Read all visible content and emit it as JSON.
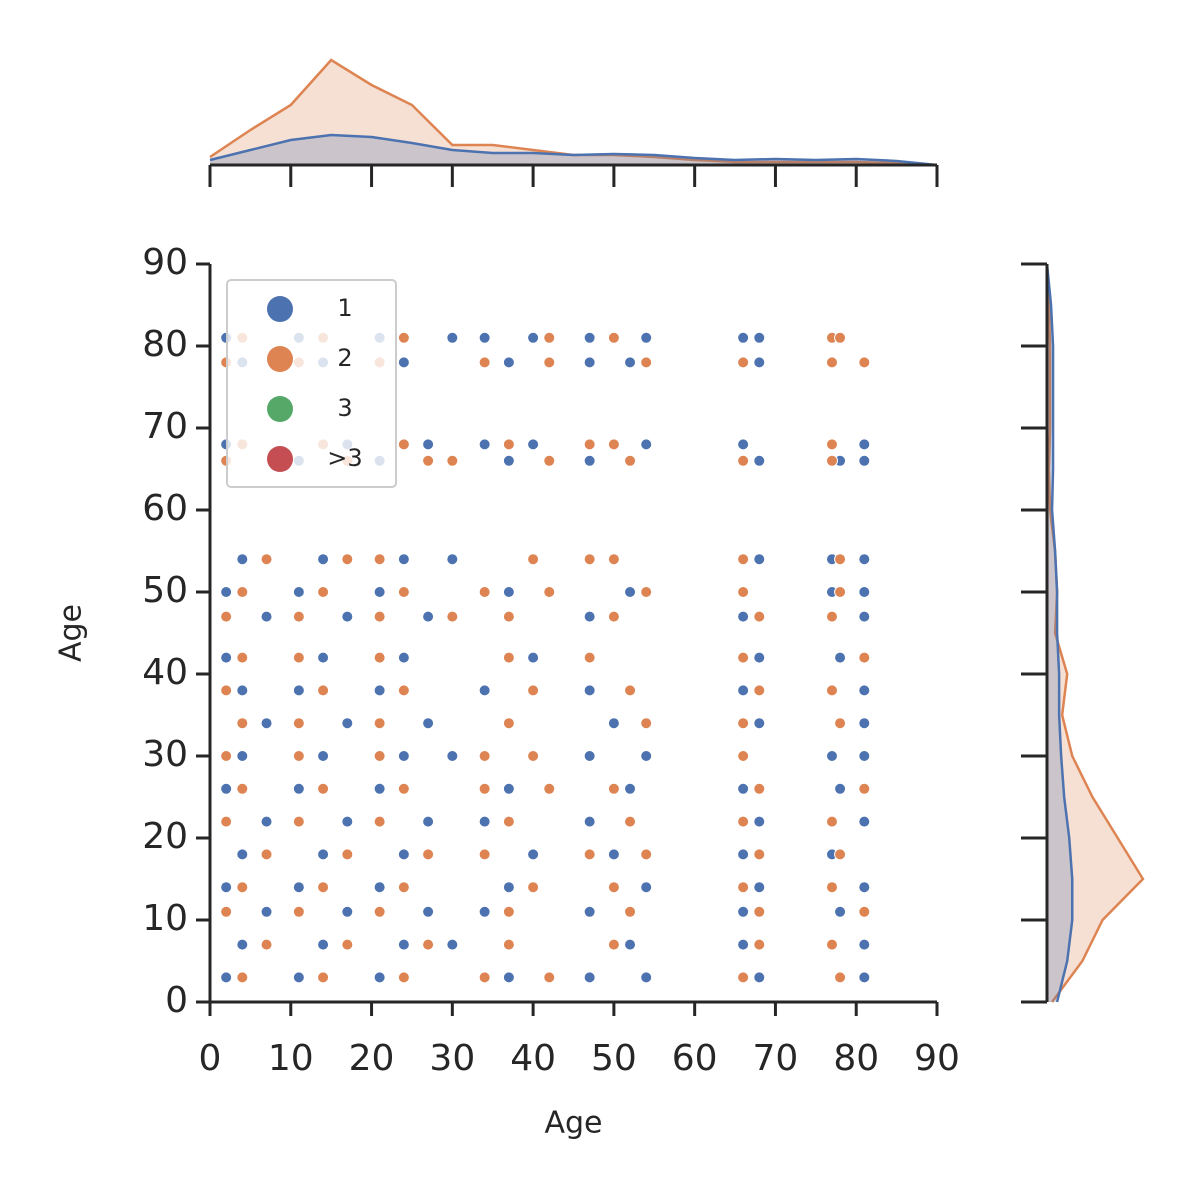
{
  "chart_data": [
    {
      "type": "scatter",
      "xlabel": "Age",
      "ylabel": "Age",
      "xlim": [
        0,
        90
      ],
      "ylim": [
        0,
        90
      ],
      "xticks": [
        0,
        10,
        20,
        30,
        40,
        50,
        60,
        70,
        80,
        90
      ],
      "yticks": [
        0,
        10,
        20,
        30,
        40,
        50,
        60,
        70,
        80,
        90
      ],
      "legend": "upper left",
      "series": [
        {
          "name": "1",
          "color": "#4c72b0",
          "x": [
            2,
            11,
            21,
            30,
            34,
            40,
            47,
            54,
            66,
            68,
            4,
            14,
            24,
            37,
            47,
            52,
            68,
            2,
            17,
            27,
            34,
            40,
            54,
            66,
            81,
            11,
            21,
            37,
            47,
            68,
            78,
            81,
            4,
            14,
            24,
            30,
            68,
            77,
            81,
            2,
            11,
            21,
            37,
            52,
            77,
            81,
            7,
            17,
            27,
            47,
            66,
            81,
            2,
            14,
            24,
            40,
            68,
            78,
            4,
            11,
            21,
            34,
            47,
            66,
            81,
            7,
            17,
            27,
            50,
            68,
            81,
            4,
            14,
            24,
            30,
            47,
            54,
            77,
            81,
            2,
            11,
            21,
            37,
            52,
            66,
            78,
            7,
            17,
            27,
            34,
            47,
            68,
            81,
            4,
            14,
            24,
            40,
            50,
            66,
            77,
            2,
            11,
            21,
            37,
            54,
            68,
            81,
            7,
            17,
            27,
            34,
            47,
            66,
            78,
            4,
            14,
            24,
            30,
            52,
            66,
            81,
            2,
            11,
            21,
            37,
            47,
            54,
            68,
            81
          ],
          "y": [
            81,
            81,
            81,
            81,
            81,
            81,
            81,
            81,
            81,
            81,
            78,
            78,
            78,
            78,
            78,
            78,
            78,
            68,
            68,
            68,
            68,
            68,
            68,
            68,
            68,
            66,
            66,
            66,
            66,
            66,
            66,
            66,
            54,
            54,
            54,
            54,
            54,
            54,
            54,
            50,
            50,
            50,
            50,
            50,
            50,
            50,
            47,
            47,
            47,
            47,
            47,
            47,
            42,
            42,
            42,
            42,
            42,
            42,
            38,
            38,
            38,
            38,
            38,
            38,
            38,
            34,
            34,
            34,
            34,
            34,
            34,
            30,
            30,
            30,
            30,
            30,
            30,
            30,
            30,
            26,
            26,
            26,
            26,
            26,
            26,
            26,
            22,
            22,
            22,
            22,
            22,
            22,
            22,
            18,
            18,
            18,
            18,
            18,
            18,
            18,
            14,
            14,
            14,
            14,
            14,
            14,
            14,
            11,
            11,
            11,
            11,
            11,
            11,
            11,
            7,
            7,
            7,
            7,
            7,
            7,
            7,
            3,
            3,
            3,
            3,
            3,
            3,
            3,
            3
          ]
        },
        {
          "name": "2",
          "color": "#dd8452",
          "x": [
            4,
            14,
            24,
            42,
            50,
            77,
            78,
            2,
            11,
            21,
            34,
            42,
            54,
            66,
            77,
            81,
            4,
            14,
            24,
            37,
            47,
            50,
            77,
            2,
            17,
            27,
            30,
            42,
            52,
            66,
            77,
            7,
            17,
            21,
            40,
            47,
            50,
            66,
            78,
            4,
            14,
            24,
            34,
            42,
            54,
            66,
            78,
            2,
            11,
            21,
            30,
            37,
            50,
            68,
            77,
            4,
            11,
            21,
            37,
            47,
            66,
            81,
            2,
            14,
            24,
            40,
            52,
            68,
            77,
            4,
            11,
            21,
            37,
            54,
            66,
            78,
            2,
            11,
            21,
            34,
            40,
            66,
            4,
            14,
            24,
            34,
            42,
            50,
            68,
            81,
            2,
            11,
            21,
            37,
            52,
            66,
            77,
            7,
            17,
            27,
            34,
            47,
            54,
            68,
            78,
            4,
            14,
            24,
            40,
            50,
            66,
            77,
            2,
            11,
            21,
            37,
            52,
            68,
            81,
            7,
            17,
            27,
            37,
            50,
            68,
            77,
            4,
            14,
            24,
            34,
            42,
            66,
            78
          ],
          "y": [
            81,
            81,
            81,
            81,
            81,
            81,
            81,
            78,
            78,
            78,
            78,
            78,
            78,
            78,
            78,
            78,
            68,
            68,
            68,
            68,
            68,
            68,
            68,
            66,
            66,
            66,
            66,
            66,
            66,
            66,
            66,
            54,
            54,
            54,
            54,
            54,
            54,
            54,
            54,
            50,
            50,
            50,
            50,
            50,
            50,
            50,
            50,
            47,
            47,
            47,
            47,
            47,
            47,
            47,
            47,
            42,
            42,
            42,
            42,
            42,
            42,
            42,
            38,
            38,
            38,
            38,
            38,
            38,
            38,
            34,
            34,
            34,
            34,
            34,
            34,
            34,
            30,
            30,
            30,
            30,
            30,
            30,
            26,
            26,
            26,
            26,
            26,
            26,
            26,
            26,
            22,
            22,
            22,
            22,
            22,
            22,
            22,
            18,
            18,
            18,
            18,
            18,
            18,
            18,
            18,
            14,
            14,
            14,
            14,
            14,
            14,
            14,
            11,
            11,
            11,
            11,
            11,
            11,
            11,
            7,
            7,
            7,
            7,
            7,
            7,
            7,
            3,
            3,
            3,
            3,
            3,
            3,
            3
          ]
        },
        {
          "name": "3",
          "color": "#55a868",
          "x": [],
          "y": []
        },
        {
          "name": ">3",
          "color": "#c44e52",
          "x": [],
          "y": []
        }
      ]
    },
    {
      "type": "area",
      "orientation": "top",
      "xlim": [
        0,
        90
      ],
      "xticks": [
        0,
        10,
        20,
        30,
        40,
        50,
        60,
        70,
        80,
        90
      ],
      "ylim": [
        0,
        110
      ],
      "x": [
        0,
        5,
        10,
        15,
        20,
        25,
        30,
        35,
        40,
        45,
        50,
        55,
        60,
        65,
        70,
        75,
        80,
        85,
        90
      ],
      "series": [
        {
          "color": "#dd8452",
          "values": [
            8,
            35,
            60,
            105,
            80,
            60,
            20,
            20,
            15,
            10,
            10,
            8,
            5,
            3,
            3,
            3,
            3,
            2,
            0
          ]
        },
        {
          "color": "#4c72b0",
          "values": [
            5,
            15,
            25,
            30,
            28,
            22,
            15,
            12,
            12,
            10,
            11,
            10,
            7,
            5,
            6,
            5,
            6,
            4,
            0
          ]
        }
      ]
    },
    {
      "type": "area",
      "orientation": "right",
      "ylim": [
        0,
        90
      ],
      "yticks": [
        0,
        10,
        20,
        30,
        40,
        50,
        60,
        70,
        80,
        90
      ],
      "xlim": [
        0,
        100
      ],
      "y": [
        0,
        5,
        10,
        15,
        20,
        25,
        30,
        35,
        40,
        45,
        50,
        55,
        60,
        65,
        70,
        75,
        80,
        85,
        90
      ],
      "series": [
        {
          "color": "#dd8452",
          "values": [
            5,
            35,
            55,
            95,
            70,
            45,
            25,
            15,
            20,
            8,
            10,
            8,
            3,
            2,
            3,
            3,
            3,
            2,
            0
          ]
        },
        {
          "color": "#4c72b0",
          "values": [
            10,
            20,
            25,
            25,
            22,
            17,
            14,
            12,
            12,
            10,
            10,
            8,
            5,
            6,
            6,
            6,
            6,
            4,
            0
          ]
        }
      ]
    }
  ]
}
